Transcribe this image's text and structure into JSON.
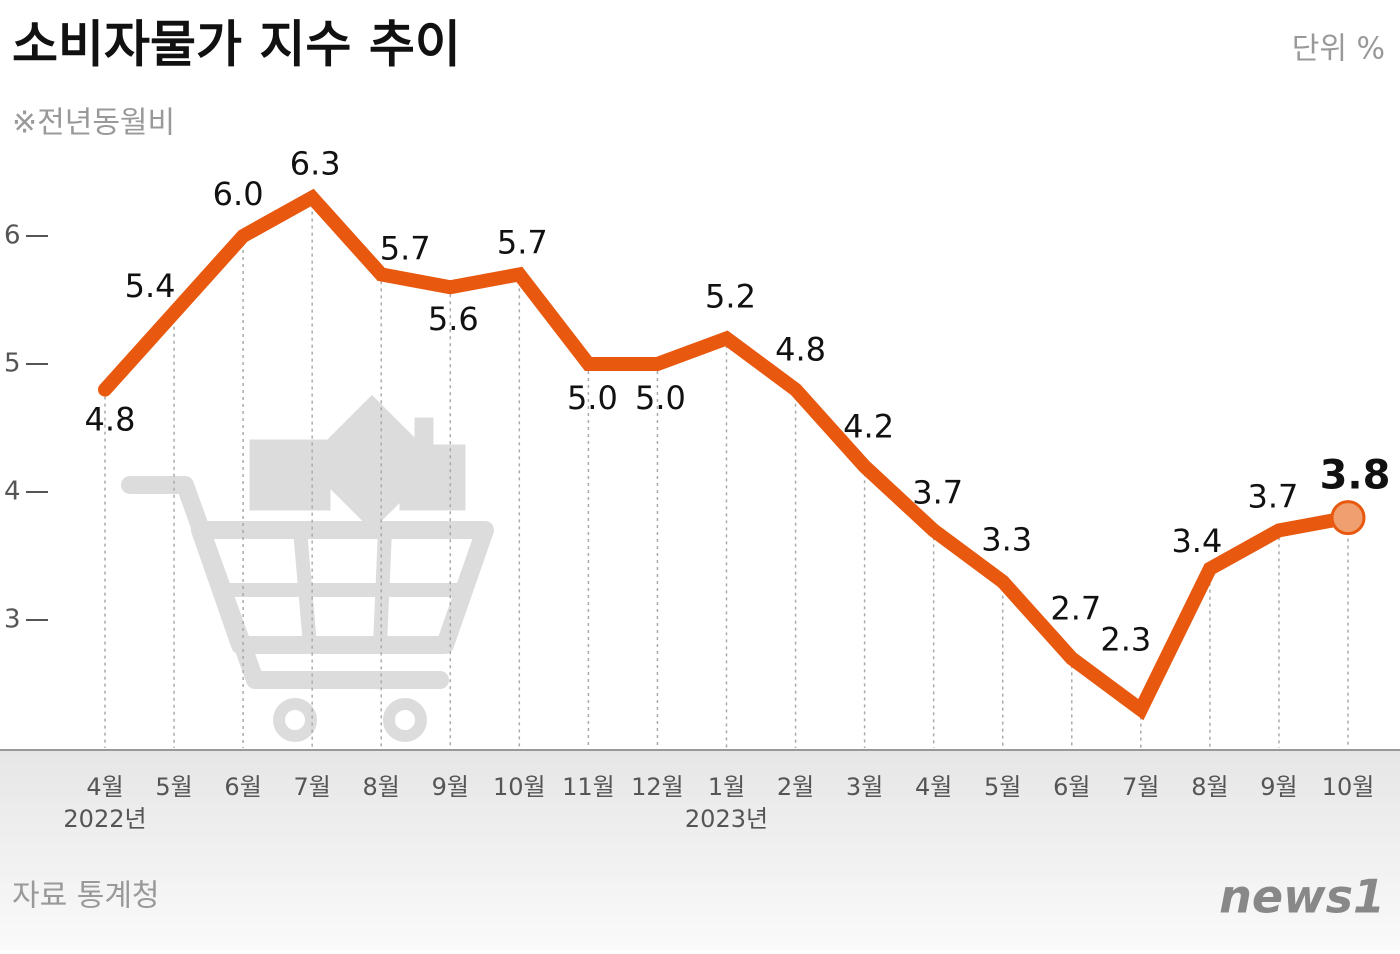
{
  "chart_data": {
    "type": "line",
    "title": "소비자물가 지수 추이",
    "subtitle": "※전년동월비",
    "unit": "단위 %",
    "source": "자료 통계청",
    "logo": "news1",
    "categories": [
      "4월",
      "5월",
      "6월",
      "7월",
      "8월",
      "9월",
      "10월",
      "11월",
      "12월",
      "1월",
      "2월",
      "3월",
      "4월",
      "5월",
      "6월",
      "7월",
      "8월",
      "9월",
      "10월"
    ],
    "year_labels": [
      "2022년",
      null,
      null,
      null,
      null,
      null,
      null,
      null,
      null,
      "2023년",
      null,
      null,
      null,
      null,
      null,
      null,
      null,
      null,
      null
    ],
    "series": [
      {
        "color": "#e8580f",
        "values": [
          4.8,
          5.4,
          6.0,
          6.3,
          5.7,
          5.6,
          5.7,
          5.0,
          5.0,
          5.2,
          4.8,
          4.2,
          3.7,
          3.3,
          2.7,
          2.3,
          3.4,
          3.7,
          3.8
        ],
        "value_labels": [
          "4.8",
          "5.4",
          "6.0",
          "6.3",
          "5.7",
          "5.6",
          "5.7",
          "5.0",
          "5.0",
          "5.2",
          "4.8",
          "4.2",
          "3.7",
          "3.3",
          "2.7",
          "2.3",
          "3.4",
          "3.7",
          "3.8"
        ]
      }
    ],
    "ylim": [
      2,
      6.5
    ],
    "yticks": [
      3,
      4,
      5,
      6
    ],
    "grid": true
  }
}
